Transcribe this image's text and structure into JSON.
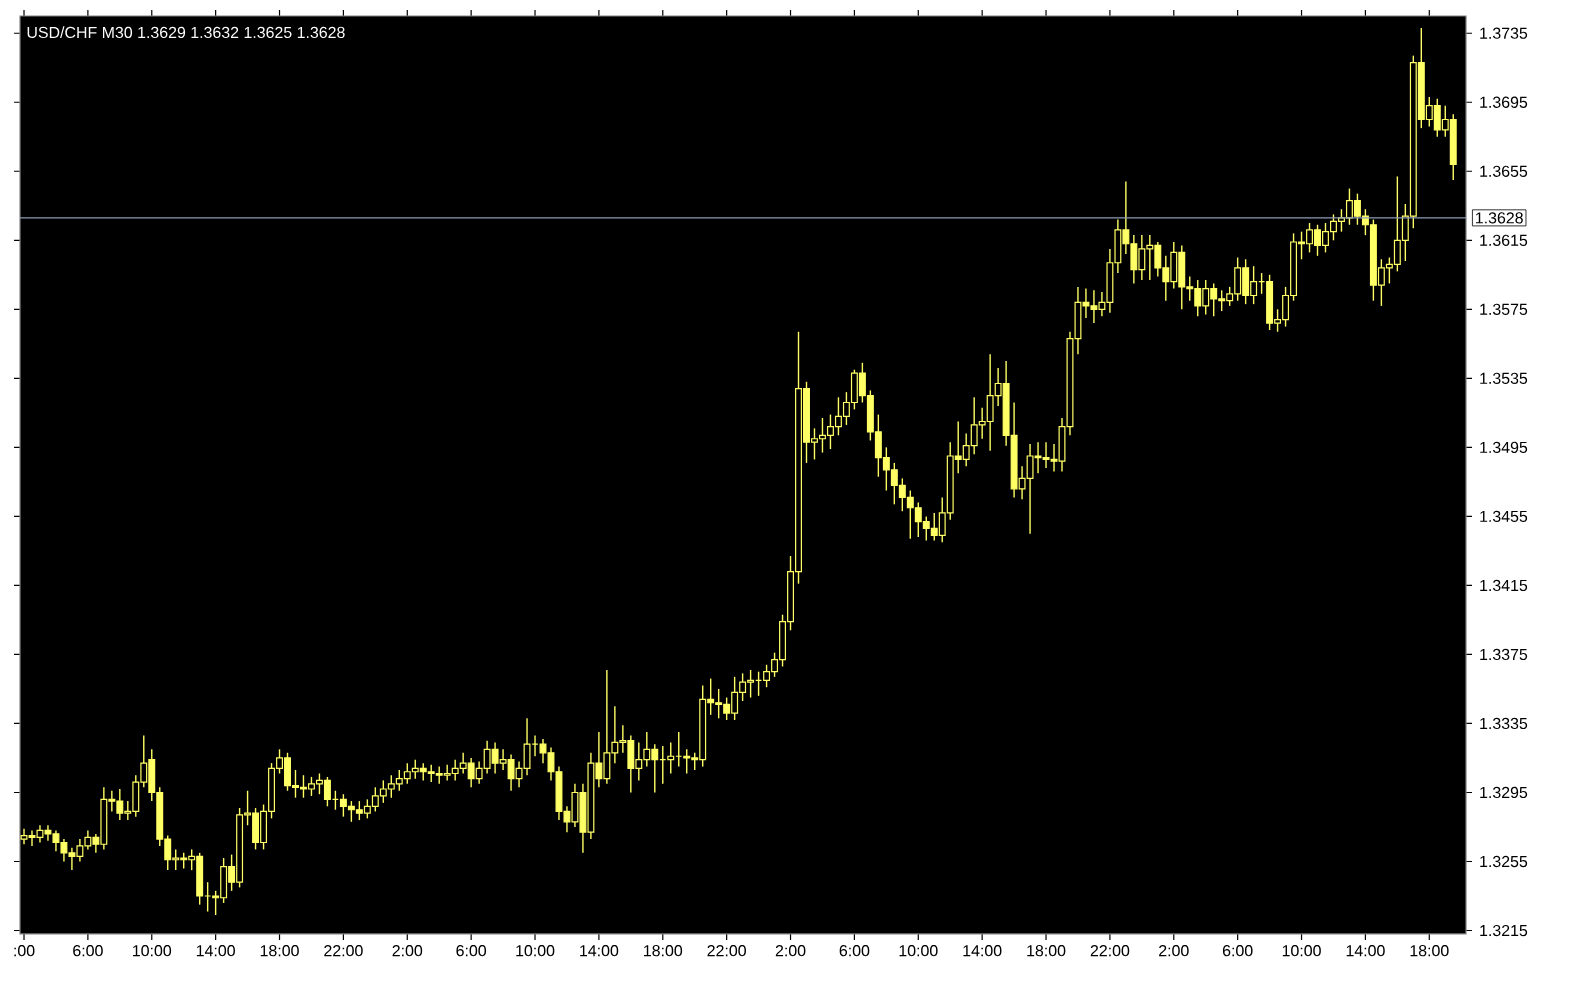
{
  "chart_data": {
    "type": "candlestick",
    "title": "USD/CHF M30   1.3629  1.3632  1.3625  1.3628",
    "color": "#ffff66",
    "categories": [
      ":00",
      null,
      null,
      null,
      null,
      null,
      null,
      null,
      "6:00",
      null,
      null,
      null,
      null,
      null,
      null,
      null,
      "10:00",
      null,
      null,
      null,
      null,
      null,
      null,
      null,
      "14:00",
      null,
      null,
      null,
      null,
      null,
      null,
      null,
      "18:00",
      null,
      null,
      null,
      null,
      null,
      null,
      null,
      "22:00",
      null,
      null,
      null,
      null,
      null,
      null,
      null,
      "2:00",
      null,
      null,
      null,
      null,
      null,
      null,
      null,
      "6:00",
      null,
      null,
      null,
      null,
      null,
      null,
      null,
      "10:00",
      null,
      null,
      null,
      null,
      null,
      null,
      null,
      "14:00",
      null,
      null,
      null,
      null,
      null,
      null,
      null,
      "18:00",
      null,
      null,
      null,
      null,
      null,
      null,
      null,
      "22:00",
      null,
      null,
      null,
      null,
      null,
      null,
      null,
      "2:00",
      null,
      null,
      null,
      null,
      null,
      null,
      null,
      "6:00",
      null,
      null,
      null,
      null,
      null,
      null,
      null,
      "10:00",
      null,
      null,
      null,
      null,
      null,
      null,
      null,
      "14:00",
      null,
      null,
      null,
      null,
      null,
      null,
      null,
      "18:00",
      null,
      null,
      null,
      null,
      null,
      null,
      null,
      "22:00",
      null,
      null,
      null,
      null,
      null,
      null,
      null,
      "2:00",
      null,
      null,
      null,
      null,
      null,
      null,
      null,
      "6:00",
      null,
      null,
      null,
      null,
      null,
      null,
      null,
      "10:00",
      null,
      null,
      null,
      null,
      null,
      null,
      null,
      "14:00",
      null,
      null,
      null,
      null,
      null,
      null,
      null,
      "18:00",
      null,
      null,
      null
    ],
    "ohlc": [
      [
        1.3268,
        1.3274,
        1.3265,
        1.327
      ],
      [
        1.327,
        1.3273,
        1.3264,
        1.3269
      ],
      [
        1.3269,
        1.3276,
        1.3266,
        1.3273
      ],
      [
        1.3273,
        1.3276,
        1.3267,
        1.3271
      ],
      [
        1.3271,
        1.3273,
        1.3261,
        1.3266
      ],
      [
        1.3266,
        1.3268,
        1.3255,
        1.326
      ],
      [
        1.326,
        1.3263,
        1.325,
        1.3258
      ],
      [
        1.3258,
        1.3268,
        1.3255,
        1.3264
      ],
      [
        1.3264,
        1.3273,
        1.3262,
        1.3269
      ],
      [
        1.3269,
        1.3271,
        1.326,
        1.3265
      ],
      [
        1.3265,
        1.3298,
        1.3262,
        1.3291
      ],
      [
        1.3291,
        1.3296,
        1.3284,
        1.329
      ],
      [
        1.329,
        1.3297,
        1.3279,
        1.3283
      ],
      [
        1.3283,
        1.329,
        1.3279,
        1.3284
      ],
      [
        1.3284,
        1.3305,
        1.3281,
        1.3301
      ],
      [
        1.3301,
        1.3328,
        1.3298,
        1.3312
      ],
      [
        1.3314,
        1.332,
        1.329,
        1.3295
      ],
      [
        1.3295,
        1.3298,
        1.3264,
        1.3268
      ],
      [
        1.3268,
        1.327,
        1.325,
        1.3256
      ],
      [
        1.3256,
        1.3262,
        1.325,
        1.3257
      ],
      [
        1.3257,
        1.326,
        1.3251,
        1.3256
      ],
      [
        1.3256,
        1.3262,
        1.325,
        1.3258
      ],
      [
        1.3258,
        1.326,
        1.323,
        1.3235
      ],
      [
        1.3235,
        1.3243,
        1.3226,
        1.3235
      ],
      [
        1.3235,
        1.3238,
        1.3224,
        1.3234
      ],
      [
        1.3234,
        1.3257,
        1.3231,
        1.3252
      ],
      [
        1.3252,
        1.3259,
        1.3238,
        1.3243
      ],
      [
        1.3243,
        1.3286,
        1.324,
        1.3282
      ],
      [
        1.3282,
        1.3296,
        1.3276,
        1.3283
      ],
      [
        1.3283,
        1.3286,
        1.3262,
        1.3266
      ],
      [
        1.3266,
        1.3288,
        1.3262,
        1.3284
      ],
      [
        1.3284,
        1.3312,
        1.328,
        1.3309
      ],
      [
        1.3309,
        1.332,
        1.3306,
        1.3315
      ],
      [
        1.3315,
        1.3318,
        1.3296,
        1.3299
      ],
      [
        1.3299,
        1.3308,
        1.3292,
        1.3298
      ],
      [
        1.3298,
        1.3305,
        1.3292,
        1.3297
      ],
      [
        1.3297,
        1.3304,
        1.3293,
        1.33
      ],
      [
        1.33,
        1.3306,
        1.3294,
        1.3302
      ],
      [
        1.3302,
        1.3304,
        1.3287,
        1.3291
      ],
      [
        1.3291,
        1.3296,
        1.3285,
        1.3291
      ],
      [
        1.3291,
        1.3294,
        1.3281,
        1.3287
      ],
      [
        1.3287,
        1.329,
        1.3278,
        1.3285
      ],
      [
        1.3285,
        1.329,
        1.3279,
        1.3283
      ],
      [
        1.3283,
        1.3291,
        1.328,
        1.3287
      ],
      [
        1.3287,
        1.3298,
        1.3284,
        1.3293
      ],
      [
        1.3293,
        1.3302,
        1.3289,
        1.3297
      ],
      [
        1.3297,
        1.3305,
        1.3292,
        1.33
      ],
      [
        1.33,
        1.3308,
        1.3296,
        1.3303
      ],
      [
        1.3303,
        1.3312,
        1.33,
        1.3307
      ],
      [
        1.3307,
        1.3314,
        1.3303,
        1.3309
      ],
      [
        1.3309,
        1.3312,
        1.3302,
        1.3307
      ],
      [
        1.3307,
        1.3311,
        1.3301,
        1.3306
      ],
      [
        1.3306,
        1.331,
        1.33,
        1.3305
      ],
      [
        1.3305,
        1.3311,
        1.3302,
        1.3306
      ],
      [
        1.3306,
        1.3314,
        1.3302,
        1.3309
      ],
      [
        1.3309,
        1.3318,
        1.3306,
        1.3312
      ],
      [
        1.3312,
        1.3315,
        1.3298,
        1.3303
      ],
      [
        1.3303,
        1.3313,
        1.33,
        1.3309
      ],
      [
        1.3309,
        1.3325,
        1.3306,
        1.332
      ],
      [
        1.332,
        1.3324,
        1.3306,
        1.3312
      ],
      [
        1.3312,
        1.332,
        1.3308,
        1.3314
      ],
      [
        1.3314,
        1.3317,
        1.3296,
        1.3303
      ],
      [
        1.3303,
        1.3313,
        1.3298,
        1.3309
      ],
      [
        1.3309,
        1.3338,
        1.3305,
        1.3323
      ],
      [
        1.3323,
        1.3328,
        1.3316,
        1.3323
      ],
      [
        1.3323,
        1.3326,
        1.3312,
        1.3318
      ],
      [
        1.3318,
        1.3321,
        1.3302,
        1.3307
      ],
      [
        1.3307,
        1.331,
        1.3279,
        1.3284
      ],
      [
        1.3284,
        1.3287,
        1.3272,
        1.3278
      ],
      [
        1.3278,
        1.33,
        1.3275,
        1.3295
      ],
      [
        1.3295,
        1.33,
        1.326,
        1.3272
      ],
      [
        1.3272,
        1.3318,
        1.3268,
        1.3312
      ],
      [
        1.3312,
        1.333,
        1.3298,
        1.3303
      ],
      [
        1.3303,
        1.3366,
        1.33,
        1.3318
      ],
      [
        1.3318,
        1.3345,
        1.3312,
        1.3324
      ],
      [
        1.3324,
        1.3334,
        1.3318,
        1.3325
      ],
      [
        1.3325,
        1.3328,
        1.3295,
        1.3309
      ],
      [
        1.3309,
        1.3324,
        1.3302,
        1.3314
      ],
      [
        1.3314,
        1.333,
        1.331,
        1.332
      ],
      [
        1.332,
        1.3323,
        1.3295,
        1.3314
      ],
      [
        1.3314,
        1.3322,
        1.33,
        1.3314
      ],
      [
        1.3314,
        1.3324,
        1.3306,
        1.3316
      ],
      [
        1.3316,
        1.333,
        1.331,
        1.3316
      ],
      [
        1.3316,
        1.332,
        1.3306,
        1.3315
      ],
      [
        1.3315,
        1.3318,
        1.3308,
        1.3314
      ],
      [
        1.3314,
        1.3357,
        1.331,
        1.3349
      ],
      [
        1.3349,
        1.3361,
        1.334,
        1.3347
      ],
      [
        1.3347,
        1.3355,
        1.3338,
        1.3346
      ],
      [
        1.3346,
        1.335,
        1.3337,
        1.3341
      ],
      [
        1.3341,
        1.3362,
        1.3337,
        1.3353
      ],
      [
        1.3353,
        1.3364,
        1.3348,
        1.3359
      ],
      [
        1.3359,
        1.3366,
        1.335,
        1.336
      ],
      [
        1.336,
        1.3365,
        1.3351,
        1.336
      ],
      [
        1.336,
        1.3369,
        1.3356,
        1.3365
      ],
      [
        1.3365,
        1.3376,
        1.3362,
        1.3372
      ],
      [
        1.3372,
        1.3398,
        1.3368,
        1.3394
      ],
      [
        1.3394,
        1.3432,
        1.3389,
        1.3423
      ],
      [
        1.3423,
        1.3562,
        1.3416,
        1.3529
      ],
      [
        1.3529,
        1.3533,
        1.3486,
        1.3498
      ],
      [
        1.3498,
        1.3506,
        1.3488,
        1.35
      ],
      [
        1.35,
        1.3512,
        1.3492,
        1.3502
      ],
      [
        1.3502,
        1.3514,
        1.3494,
        1.3507
      ],
      [
        1.3507,
        1.3524,
        1.3502,
        1.3513
      ],
      [
        1.3513,
        1.3527,
        1.3508,
        1.3521
      ],
      [
        1.3521,
        1.354,
        1.3517,
        1.3538
      ],
      [
        1.3538,
        1.3544,
        1.3521,
        1.3525
      ],
      [
        1.3525,
        1.3528,
        1.3499,
        1.3504
      ],
      [
        1.3504,
        1.3514,
        1.3478,
        1.3489
      ],
      [
        1.3489,
        1.3495,
        1.347,
        1.3482
      ],
      [
        1.3482,
        1.3486,
        1.3462,
        1.3473
      ],
      [
        1.3473,
        1.3477,
        1.3458,
        1.3466
      ],
      [
        1.3466,
        1.347,
        1.3442,
        1.346
      ],
      [
        1.346,
        1.3463,
        1.3443,
        1.3452
      ],
      [
        1.3452,
        1.3455,
        1.3441,
        1.3448
      ],
      [
        1.3448,
        1.3457,
        1.3441,
        1.3444
      ],
      [
        1.3444,
        1.3466,
        1.344,
        1.3457
      ],
      [
        1.3457,
        1.3498,
        1.3453,
        1.349
      ],
      [
        1.349,
        1.351,
        1.348,
        1.3488
      ],
      [
        1.3488,
        1.3503,
        1.3484,
        1.3496
      ],
      [
        1.3496,
        1.3524,
        1.3491,
        1.3508
      ],
      [
        1.3508,
        1.3518,
        1.35,
        1.351
      ],
      [
        1.351,
        1.3549,
        1.3493,
        1.3525
      ],
      [
        1.3525,
        1.3541,
        1.3519,
        1.3532
      ],
      [
        1.3532,
        1.3545,
        1.3496,
        1.3502
      ],
      [
        1.3502,
        1.3521,
        1.3466,
        1.3471
      ],
      [
        1.3471,
        1.3484,
        1.3465,
        1.3477
      ],
      [
        1.3477,
        1.3497,
        1.3445,
        1.349
      ],
      [
        1.349,
        1.3498,
        1.348,
        1.3489
      ],
      [
        1.3489,
        1.3498,
        1.3483,
        1.3488
      ],
      [
        1.3488,
        1.3497,
        1.3481,
        1.3487
      ],
      [
        1.3487,
        1.3512,
        1.3481,
        1.3507
      ],
      [
        1.3507,
        1.3562,
        1.3502,
        1.3558
      ],
      [
        1.3558,
        1.3588,
        1.3549,
        1.3579
      ],
      [
        1.3579,
        1.3587,
        1.357,
        1.3577
      ],
      [
        1.3577,
        1.3586,
        1.3567,
        1.3575
      ],
      [
        1.3575,
        1.3585,
        1.3571,
        1.3579
      ],
      [
        1.3579,
        1.361,
        1.3573,
        1.3602
      ],
      [
        1.3602,
        1.3627,
        1.3596,
        1.3621
      ],
      [
        1.3621,
        1.3649,
        1.3607,
        1.3613
      ],
      [
        1.3613,
        1.3618,
        1.359,
        1.3598
      ],
      [
        1.3598,
        1.3618,
        1.3592,
        1.361
      ],
      [
        1.361,
        1.3618,
        1.3592,
        1.3612
      ],
      [
        1.3612,
        1.3614,
        1.3594,
        1.3599
      ],
      [
        1.3599,
        1.3606,
        1.358,
        1.3591
      ],
      [
        1.3591,
        1.3614,
        1.3587,
        1.3608
      ],
      [
        1.3608,
        1.3612,
        1.3575,
        1.3588
      ],
      [
        1.3588,
        1.3594,
        1.358,
        1.3587
      ],
      [
        1.3587,
        1.3592,
        1.3571,
        1.3577
      ],
      [
        1.3577,
        1.3592,
        1.3572,
        1.3587
      ],
      [
        1.3587,
        1.359,
        1.3571,
        1.3581
      ],
      [
        1.3581,
        1.3586,
        1.3574,
        1.358
      ],
      [
        1.358,
        1.3588,
        1.3577,
        1.3584
      ],
      [
        1.3584,
        1.3605,
        1.358,
        1.3599
      ],
      [
        1.3599,
        1.3604,
        1.3578,
        1.3583
      ],
      [
        1.3583,
        1.36,
        1.3578,
        1.3591
      ],
      [
        1.3591,
        1.3596,
        1.3584,
        1.3591
      ],
      [
        1.3591,
        1.3595,
        1.3563,
        1.3567
      ],
      [
        1.3567,
        1.3575,
        1.3562,
        1.3569
      ],
      [
        1.3569,
        1.3588,
        1.3565,
        1.3583
      ],
      [
        1.3583,
        1.3619,
        1.358,
        1.3614
      ],
      [
        1.3614,
        1.362,
        1.3604,
        1.3613
      ],
      [
        1.3613,
        1.3625,
        1.3608,
        1.3621
      ],
      [
        1.3621,
        1.3624,
        1.3606,
        1.3612
      ],
      [
        1.3612,
        1.3625,
        1.3608,
        1.362
      ],
      [
        1.362,
        1.363,
        1.3615,
        1.3626
      ],
      [
        1.3626,
        1.3633,
        1.362,
        1.3628
      ],
      [
        1.3628,
        1.3645,
        1.3624,
        1.3638
      ],
      [
        1.3638,
        1.3642,
        1.3624,
        1.3629
      ],
      [
        1.3629,
        1.3633,
        1.3618,
        1.3624
      ],
      [
        1.3624,
        1.3627,
        1.358,
        1.3589
      ],
      [
        1.3589,
        1.3604,
        1.3577,
        1.3599
      ],
      [
        1.3599,
        1.3605,
        1.359,
        1.3601
      ],
      [
        1.3601,
        1.3652,
        1.3597,
        1.3615
      ],
      [
        1.3615,
        1.3636,
        1.3603,
        1.3629
      ],
      [
        1.3629,
        1.3722,
        1.3622,
        1.3718
      ],
      [
        1.3718,
        1.3738,
        1.368,
        1.3685
      ],
      [
        1.3685,
        1.3698,
        1.3681,
        1.3693
      ],
      [
        1.3693,
        1.3697,
        1.3675,
        1.3679
      ],
      [
        1.3679,
        1.3693,
        1.3675,
        1.3685
      ],
      [
        1.3685,
        1.3688,
        1.365,
        1.3659
      ]
    ],
    "ylim": [
      1.3213,
      1.3745
    ],
    "yticks": [
      1.3215,
      1.3255,
      1.3295,
      1.3335,
      1.3375,
      1.3415,
      1.3455,
      1.3495,
      1.3535,
      1.3575,
      1.3615,
      1.3655,
      1.3695,
      1.3735
    ],
    "ref_lines": [
      {
        "axis": "y",
        "value": 1.3628,
        "label": "1.3628",
        "color": "#8c9bb4"
      }
    ]
  }
}
